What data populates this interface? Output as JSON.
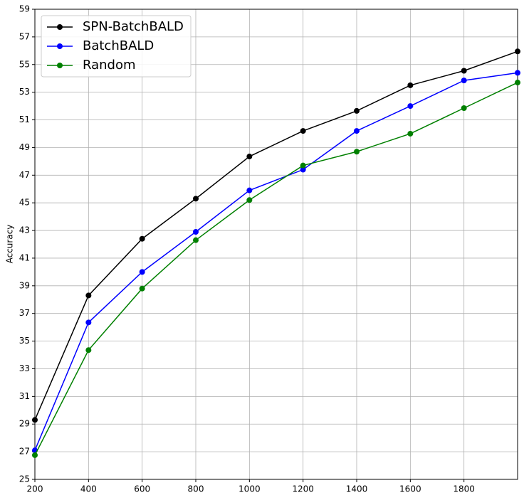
{
  "chart_data": {
    "type": "line",
    "y_label": "Accuracy",
    "x": [
      200,
      400,
      600,
      800,
      1000,
      1200,
      1400,
      1600,
      1800,
      2000
    ],
    "xlim": [
      200,
      2000
    ],
    "xticks": [
      200,
      400,
      600,
      800,
      1000,
      1200,
      1400,
      1600,
      1800
    ],
    "ylim": [
      25,
      59
    ],
    "yticks": [
      25,
      27,
      29,
      31,
      33,
      35,
      37,
      39,
      41,
      43,
      45,
      47,
      49,
      51,
      53,
      55,
      57,
      59
    ],
    "grid": true,
    "legend": "upper left",
    "series": [
      {
        "name": "SPN-BatchBALD",
        "color": "#000000",
        "values": [
          29.3,
          38.3,
          42.4,
          45.3,
          48.35,
          50.2,
          51.65,
          53.5,
          54.55,
          55.95
        ]
      },
      {
        "name": "BatchBALD",
        "color": "#0000ff",
        "values": [
          27.1,
          36.35,
          40.0,
          42.9,
          45.9,
          47.4,
          50.2,
          52.0,
          53.85,
          54.4
        ]
      },
      {
        "name": "Random",
        "color": "#008000",
        "values": [
          26.75,
          34.35,
          38.8,
          42.3,
          45.2,
          47.7,
          48.7,
          50.0,
          51.85,
          53.7
        ]
      }
    ]
  }
}
